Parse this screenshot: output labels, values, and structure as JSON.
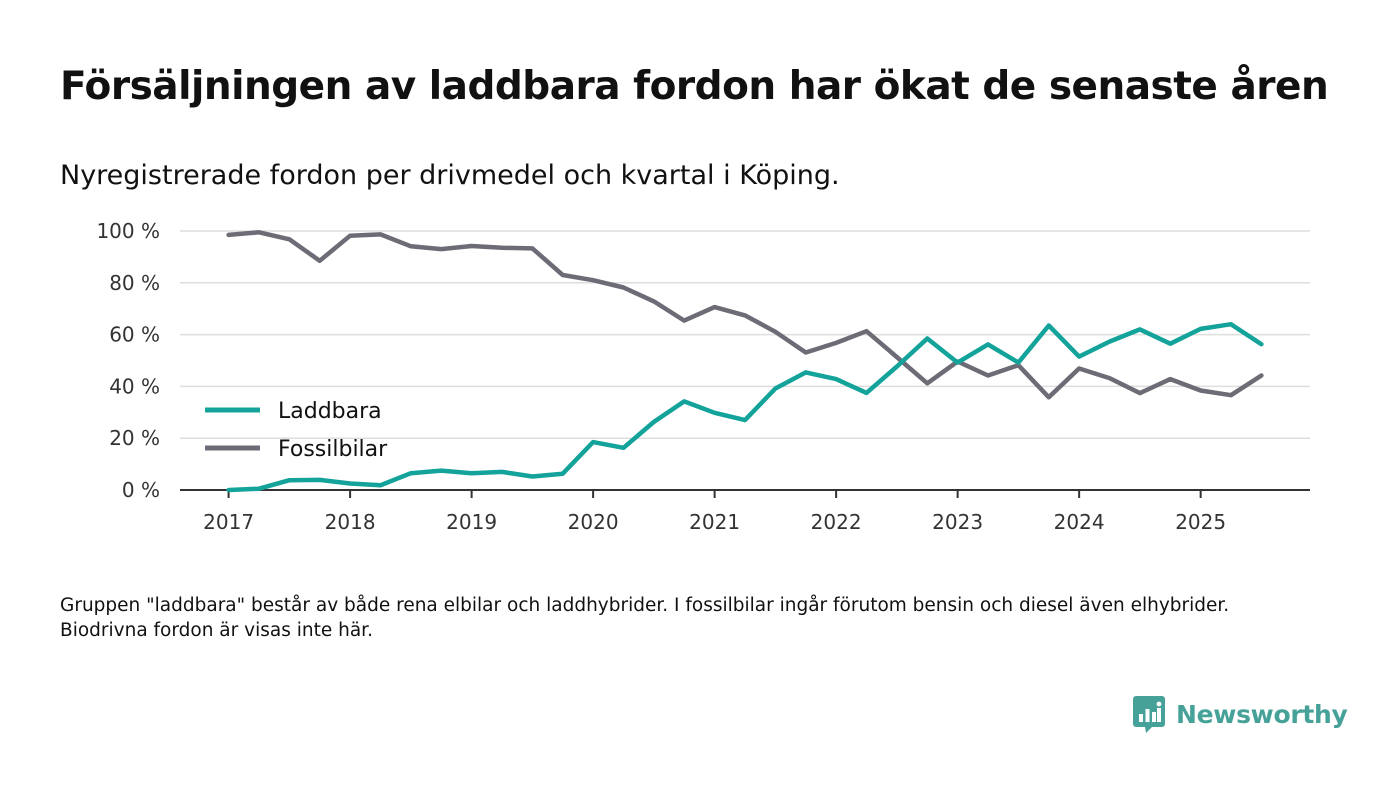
{
  "title": "Försäljningen av laddbara fordon har ökat de senaste åren",
  "subtitle": "Nyregistrerade fordon per drivmedel och kvartal i Köping.",
  "footnote": "Gruppen \"laddbara\" består av både rena elbilar och laddhybrider. I fossilbilar ingår förutom bensin och diesel även elhybrider. Biodrivna fordon är visas inte här.",
  "brand": {
    "name": "Newsworthy",
    "icon": "newsworthy-logo-icon",
    "color": "#46a299"
  },
  "chart_data": {
    "type": "line",
    "title": "Försäljningen av laddbara fordon har ökat de senaste åren",
    "xlabel": "",
    "ylabel": "",
    "ylim": [
      0,
      100
    ],
    "yticks": [
      0,
      20,
      40,
      60,
      80,
      100
    ],
    "ytick_labels": [
      "0 %",
      "20 %",
      "40 %",
      "60 %",
      "80 %",
      "100 %"
    ],
    "xlim": [
      2016.6,
      2025.9
    ],
    "xticks": [
      2017,
      2018,
      2019,
      2020,
      2021,
      2022,
      2023,
      2024,
      2025
    ],
    "xtick_labels": [
      "2017",
      "2018",
      "2019",
      "2020",
      "2021",
      "2022",
      "2023",
      "2024",
      "2025"
    ],
    "grid": true,
    "legend_position": "middle-left",
    "x": [
      2017.0,
      2017.25,
      2017.5,
      2017.75,
      2018.0,
      2018.25,
      2018.5,
      2018.75,
      2019.0,
      2019.25,
      2019.5,
      2019.75,
      2020.0,
      2020.25,
      2020.5,
      2020.75,
      2021.0,
      2021.25,
      2021.5,
      2021.75,
      2022.0,
      2022.25,
      2022.5,
      2022.75,
      2023.0,
      2023.25,
      2023.5,
      2023.75,
      2024.0,
      2024.25,
      2024.5,
      2024.75,
      2025.0,
      2025.25,
      2025.5
    ],
    "series": [
      {
        "name": "Laddbara",
        "color": "#14a39a",
        "values": [
          0,
          0.5,
          3.8,
          3.9,
          2.5,
          1.8,
          6.5,
          7.5,
          6.5,
          7,
          5.2,
          6.3,
          18.5,
          16.3,
          26.3,
          34.2,
          29.8,
          27,
          39.2,
          45.4,
          42.8,
          37.5,
          47.7,
          58.5,
          49.2,
          56.2,
          49.2,
          63.5,
          51.5,
          57.3,
          62,
          56.5,
          62.2,
          64,
          56.3
        ]
      },
      {
        "name": "Fossilbilar",
        "color": "#6d6c76",
        "values": [
          98.5,
          99.5,
          96.8,
          88.5,
          98.2,
          98.7,
          94.1,
          93,
          94.2,
          93.5,
          93.3,
          83,
          81,
          78.2,
          72.8,
          65.4,
          70.6,
          67.4,
          61.1,
          53.1,
          56.8,
          61.3,
          51.3,
          41.2,
          49.6,
          44.2,
          48.2,
          35.8,
          46.9,
          43.2,
          37.4,
          42.8,
          38.4,
          36.6,
          44.2
        ]
      }
    ]
  }
}
